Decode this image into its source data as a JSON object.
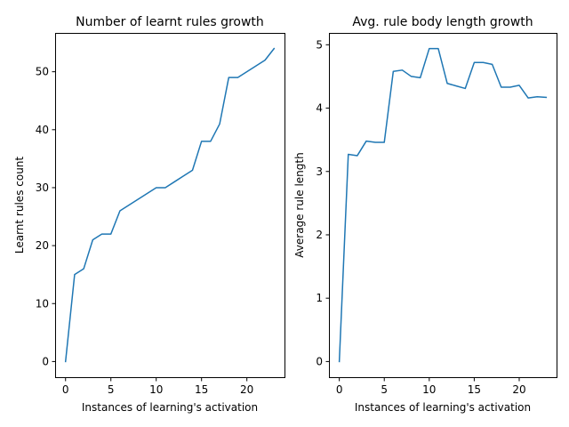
{
  "chart_data": [
    {
      "type": "line",
      "title": "Number of learnt rules growth",
      "xlabel": "Instances of learning's activation",
      "ylabel": "Learnt rules count",
      "xlim": [
        -1.15,
        24.15
      ],
      "ylim": [
        -2.7,
        56.7
      ],
      "xticks": [
        0,
        5,
        10,
        15,
        20
      ],
      "yticks": [
        0,
        10,
        20,
        30,
        40,
        50
      ],
      "grid": false,
      "color": "#1f77b4",
      "x": [
        0,
        1,
        2,
        3,
        4,
        5,
        6,
        7,
        8,
        9,
        10,
        11,
        12,
        13,
        14,
        15,
        16,
        17,
        18,
        19,
        20,
        21,
        22,
        23
      ],
      "y": [
        0,
        15,
        16,
        21,
        22,
        22,
        26,
        27,
        28,
        29,
        30,
        30,
        31,
        32,
        33,
        38,
        38,
        41,
        49,
        49,
        50,
        51,
        52,
        54
      ]
    },
    {
      "type": "line",
      "title": "Avg. rule body length growth",
      "xlabel": "Instances of learning's activation",
      "ylabel": "Average rule length",
      "xlim": [
        -1.15,
        24.15
      ],
      "ylim": [
        -0.247,
        5.187
      ],
      "xticks": [
        0,
        5,
        10,
        15,
        20
      ],
      "yticks": [
        0,
        1,
        2,
        3,
        4,
        5
      ],
      "grid": false,
      "color": "#1f77b4",
      "x": [
        0,
        1,
        2,
        3,
        4,
        5,
        6,
        7,
        8,
        9,
        10,
        11,
        12,
        13,
        14,
        15,
        16,
        17,
        18,
        19,
        20,
        21,
        22,
        23
      ],
      "y": [
        0,
        3.27,
        3.25,
        3.48,
        3.46,
        3.46,
        4.58,
        4.6,
        4.5,
        4.48,
        4.94,
        4.94,
        4.39,
        4.35,
        4.31,
        4.72,
        4.72,
        4.69,
        4.33,
        4.33,
        4.36,
        4.16,
        4.18,
        4.17
      ]
    }
  ]
}
